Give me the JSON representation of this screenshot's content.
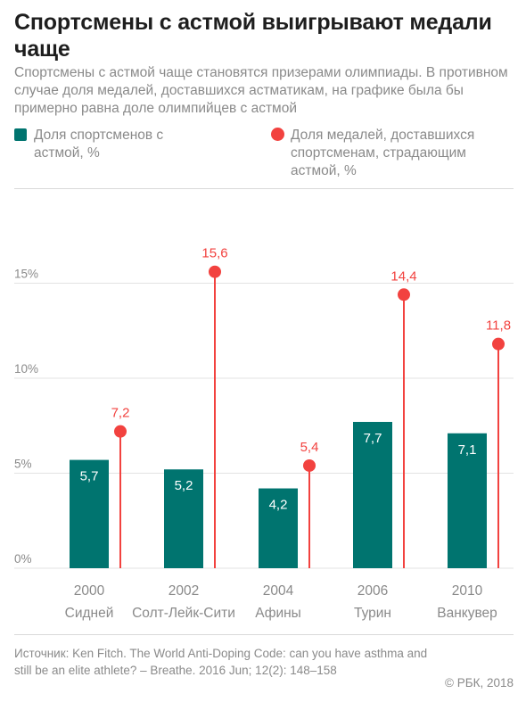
{
  "title": "Спортсмены с астмой выигрывают медали чаще",
  "subtitle": "Спортсмены с астмой чаще становятся призерами олимпиады. В противном случае доля медалей, доставшихся астматикам, на графике была бы примерно равна доле олимпийцев с астмой",
  "colors": {
    "bar": "#00746f",
    "medal": "#f2423f",
    "grid": "#e3e3e3",
    "axis_text": "#8a8a8a"
  },
  "chart_data": {
    "type": "bar",
    "title": "Спортсмены с астмой выигрывают медали чаще",
    "categories": [
      "2000",
      "2002",
      "2004",
      "2006",
      "2010"
    ],
    "category_sublabels": [
      "Сидней",
      "Солт-Лейк-Сити",
      "Афины",
      "Турин",
      "Ванкувер"
    ],
    "series": [
      {
        "name": "Доля спортсменов с астмой, %",
        "type": "bar",
        "values": [
          5.7,
          5.2,
          4.2,
          7.7,
          7.1
        ],
        "labels": [
          "5,7",
          "5,2",
          "4,2",
          "7,7",
          "7,1"
        ]
      },
      {
        "name": "Доля медалей, доставшихся спортсменам, страдающим астмой, %",
        "type": "lollipop",
        "values": [
          7.2,
          15.6,
          5.4,
          14.4,
          11.8
        ],
        "labels": [
          "7,2",
          "15,6",
          "5,4",
          "14,4",
          "11,8"
        ]
      }
    ],
    "yticks": [
      0,
      5,
      10,
      15
    ],
    "ytick_labels": [
      "0%",
      "5%",
      "10%",
      "15%"
    ],
    "ylim": [
      0,
      16
    ],
    "grid": true,
    "legend_position": "top"
  },
  "source": "Источник: Ken Fitch. The World Anti-Doping Code: can you have asthma and still be an elite athlete? – Breathe. 2016 Jun; 12(2): 148–158",
  "copyright": "© РБК, 2018"
}
